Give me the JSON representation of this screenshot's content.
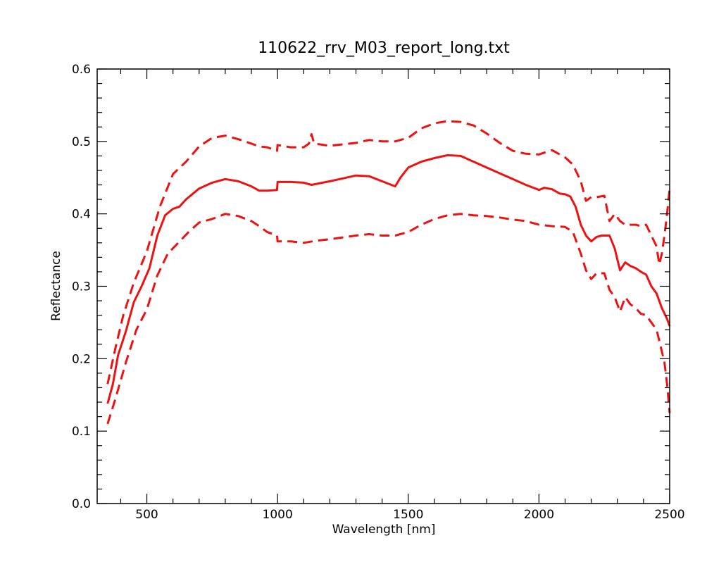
{
  "chart_data": {
    "type": "line",
    "title": "110622_rrv_M03_report_long.txt",
    "xlabel": "Wavelength [nm]",
    "ylabel": "Reflectance",
    "xlim": [
      310,
      2500
    ],
    "ylim": [
      0.0,
      0.6
    ],
    "x_ticks": [
      500,
      1000,
      1500,
      2000,
      2500
    ],
    "x_tick_labels": [
      "500",
      "1000",
      "1500",
      "2000",
      "2500"
    ],
    "y_ticks": [
      0.0,
      0.1,
      0.2,
      0.3,
      0.4,
      0.5,
      0.6
    ],
    "y_tick_labels": [
      "0.0",
      "0.1",
      "0.2",
      "0.3",
      "0.4",
      "0.5",
      "0.6"
    ],
    "grid": false,
    "color": "#ee1111",
    "series": [
      {
        "style": "solid",
        "x": [
          350,
          370,
          390,
          420,
          450,
          480,
          510,
          540,
          570,
          600,
          625,
          650,
          700,
          750,
          800,
          850,
          900,
          930,
          960,
          998,
          1000,
          1050,
          1100,
          1130,
          1200,
          1250,
          1300,
          1350,
          1400,
          1450,
          1470,
          1500,
          1550,
          1600,
          1650,
          1700,
          1750,
          1800,
          1850,
          1900,
          1950,
          2000,
          2020,
          2050,
          2080,
          2100,
          2120,
          2140,
          2160,
          2180,
          2200,
          2220,
          2240,
          2270,
          2290,
          2310,
          2330,
          2350,
          2370,
          2390,
          2410,
          2430,
          2450,
          2470,
          2490,
          2500
        ],
        "y": [
          0.138,
          0.165,
          0.205,
          0.238,
          0.278,
          0.3,
          0.325,
          0.37,
          0.398,
          0.407,
          0.41,
          0.42,
          0.435,
          0.443,
          0.448,
          0.445,
          0.438,
          0.432,
          0.432,
          0.433,
          0.444,
          0.444,
          0.443,
          0.44,
          0.445,
          0.449,
          0.453,
          0.452,
          0.445,
          0.438,
          0.45,
          0.464,
          0.472,
          0.477,
          0.481,
          0.48,
          0.472,
          0.464,
          0.456,
          0.448,
          0.44,
          0.433,
          0.436,
          0.434,
          0.428,
          0.427,
          0.424,
          0.41,
          0.385,
          0.37,
          0.362,
          0.368,
          0.37,
          0.37,
          0.352,
          0.322,
          0.333,
          0.328,
          0.325,
          0.32,
          0.316,
          0.3,
          0.29,
          0.27,
          0.255,
          0.245
        ]
      },
      {
        "style": "dashed",
        "x": [
          350,
          380,
          410,
          450,
          500,
          550,
          600,
          650,
          700,
          750,
          800,
          850,
          900,
          930,
          960,
          998,
          1000,
          1050,
          1100,
          1120,
          1130,
          1140,
          1200,
          1300,
          1350,
          1400,
          1450,
          1500,
          1550,
          1600,
          1650,
          1700,
          1750,
          1800,
          1850,
          1900,
          1950,
          2000,
          2050,
          2100,
          2130,
          2160,
          2180,
          2200,
          2220,
          2250,
          2270,
          2290,
          2310,
          2330,
          2350,
          2370,
          2390,
          2410,
          2430,
          2450,
          2460,
          2470,
          2480,
          2490,
          2500
        ],
        "y": [
          0.165,
          0.215,
          0.26,
          0.305,
          0.348,
          0.41,
          0.455,
          0.472,
          0.493,
          0.505,
          0.508,
          0.503,
          0.497,
          0.493,
          0.492,
          0.487,
          0.495,
          0.492,
          0.492,
          0.497,
          0.51,
          0.497,
          0.494,
          0.498,
          0.502,
          0.5,
          0.5,
          0.505,
          0.518,
          0.525,
          0.528,
          0.527,
          0.522,
          0.511,
          0.498,
          0.487,
          0.483,
          0.482,
          0.488,
          0.478,
          0.468,
          0.445,
          0.418,
          0.423,
          0.423,
          0.425,
          0.39,
          0.4,
          0.39,
          0.385,
          0.385,
          0.385,
          0.383,
          0.385,
          0.37,
          0.355,
          0.33,
          0.345,
          0.37,
          0.4,
          0.435
        ]
      },
      {
        "style": "dashed",
        "x": [
          350,
          380,
          420,
          460,
          500,
          540,
          580,
          620,
          660,
          700,
          750,
          800,
          850,
          900,
          930,
          960,
          998,
          1000,
          1050,
          1100,
          1150,
          1200,
          1300,
          1350,
          1400,
          1450,
          1500,
          1550,
          1600,
          1650,
          1700,
          1750,
          1800,
          1850,
          1900,
          1950,
          2000,
          2050,
          2100,
          2130,
          2160,
          2180,
          2200,
          2220,
          2250,
          2270,
          2290,
          2310,
          2330,
          2350,
          2370,
          2390,
          2410,
          2430,
          2450,
          2460,
          2470,
          2480,
          2490,
          2500
        ],
        "y": [
          0.11,
          0.145,
          0.195,
          0.24,
          0.268,
          0.315,
          0.345,
          0.36,
          0.375,
          0.388,
          0.393,
          0.4,
          0.397,
          0.39,
          0.383,
          0.375,
          0.37,
          0.362,
          0.362,
          0.36,
          0.363,
          0.365,
          0.37,
          0.372,
          0.37,
          0.37,
          0.375,
          0.385,
          0.393,
          0.398,
          0.4,
          0.398,
          0.397,
          0.395,
          0.392,
          0.39,
          0.385,
          0.383,
          0.382,
          0.375,
          0.345,
          0.322,
          0.31,
          0.318,
          0.318,
          0.295,
          0.285,
          0.265,
          0.285,
          0.275,
          0.27,
          0.262,
          0.26,
          0.25,
          0.24,
          0.225,
          0.21,
          0.195,
          0.165,
          0.125
        ]
      }
    ]
  }
}
